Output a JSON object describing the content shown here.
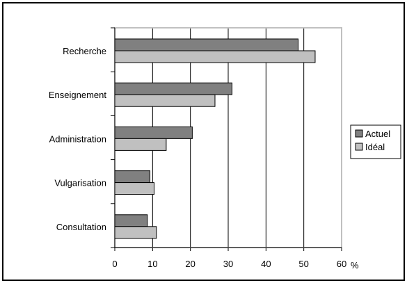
{
  "chart_data": {
    "type": "bar",
    "orientation": "horizontal",
    "categories": [
      "Recherche",
      "Enseignement",
      "Administration",
      "Vulgarisation",
      "Consultation"
    ],
    "series": [
      {
        "name": "Actuel",
        "values": [
          48.5,
          31,
          20.5,
          9.3,
          8.6
        ],
        "color": "#808080"
      },
      {
        "name": "Idéal",
        "values": [
          53,
          26.5,
          13.6,
          10.4,
          11
        ],
        "color": "#c0c0c0"
      }
    ],
    "xlim": [
      0,
      60
    ],
    "xticks": [
      "0",
      "10",
      "20",
      "30",
      "40",
      "50",
      "60"
    ],
    "xunit": "%",
    "grid": "vertical",
    "legend": "right",
    "frame_color": "#000000",
    "plot_border_color": "#c0c0c0"
  }
}
